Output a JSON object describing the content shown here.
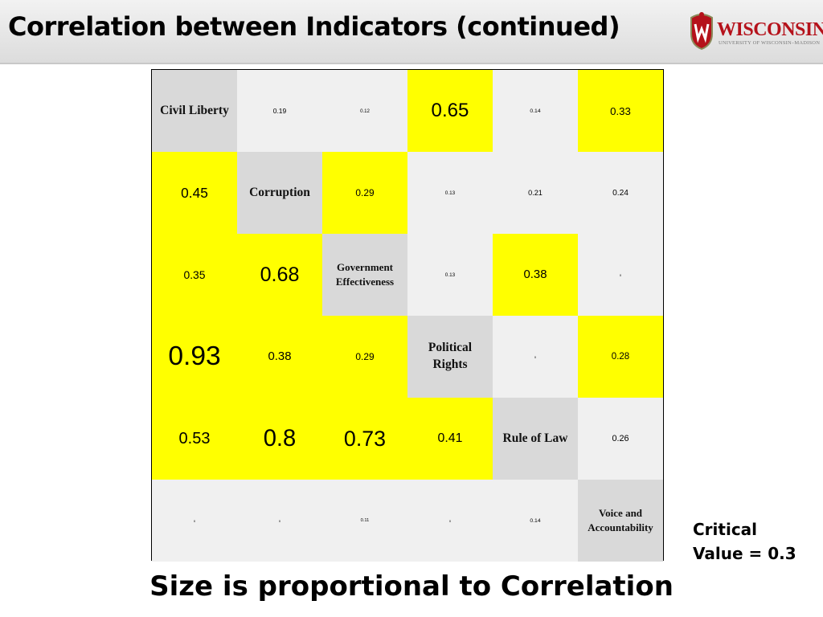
{
  "slide": {
    "title": "Correlation between Indicators (continued)",
    "caption": "Size is proportional to Correlation",
    "critical_line1": "Critical",
    "critical_line2": "Value = 0.3"
  },
  "logo": {
    "word": "WISCONSIN",
    "subtitle": "UNIVERSITY OF WISCONSIN–MADISON",
    "brand_color": "#b5121b"
  },
  "colors": {
    "significant": "#ffff00",
    "not_significant": "#f0f0f0",
    "diagonal": "#d9d9d9"
  },
  "chart_data": {
    "type": "heatmap",
    "critical_value": 0.3,
    "indicators": [
      "Civil Liberty",
      "Corruption",
      "Government Effectiveness",
      "Political Rights",
      "Rule of Law",
      "Voice and Accountability"
    ],
    "indicator_lines": [
      [
        "Civil Liberty"
      ],
      [
        "Corruption"
      ],
      [
        "Government",
        "Effectiveness"
      ],
      [
        "Political",
        "Rights"
      ],
      [
        "Rule of Law"
      ],
      [
        "Voice and",
        "Accountability"
      ]
    ],
    "matrix": [
      [
        null,
        0.19,
        0.12,
        0.65,
        0.14,
        0.33
      ],
      [
        0.45,
        null,
        0.29,
        0.13,
        0.21,
        0.24
      ],
      [
        0.35,
        0.68,
        null,
        0.13,
        0.38,
        0
      ],
      [
        0.93,
        0.38,
        0.29,
        null,
        0,
        0.28
      ],
      [
        0.53,
        0.8,
        0.73,
        0.41,
        null,
        0.26
      ],
      [
        0,
        0,
        0.11,
        0,
        0.14,
        null
      ]
    ],
    "labels": [
      [
        null,
        "0.19",
        "0.12",
        "0.65",
        "0.14",
        "0.33"
      ],
      [
        "0.45",
        null,
        "0.29",
        "0.13",
        "0.21",
        "0.24"
      ],
      [
        "0.35",
        "0.68",
        null,
        "0.13",
        "0.38",
        "0"
      ],
      [
        "0.93",
        "0.38",
        "0.29",
        null,
        "0",
        "0.28"
      ],
      [
        "0.53",
        "0.8",
        "0.73",
        "0.41",
        null,
        "0.26"
      ],
      [
        "0",
        "0",
        "0.11",
        "0",
        "0.14",
        null
      ]
    ],
    "highlighted": [
      [
        false,
        false,
        false,
        true,
        false,
        true
      ],
      [
        true,
        false,
        true,
        false,
        false,
        false
      ],
      [
        true,
        true,
        false,
        false,
        true,
        false
      ],
      [
        true,
        true,
        true,
        false,
        false,
        true
      ],
      [
        true,
        true,
        true,
        true,
        false,
        false
      ],
      [
        false,
        false,
        false,
        false,
        false,
        false
      ]
    ]
  }
}
